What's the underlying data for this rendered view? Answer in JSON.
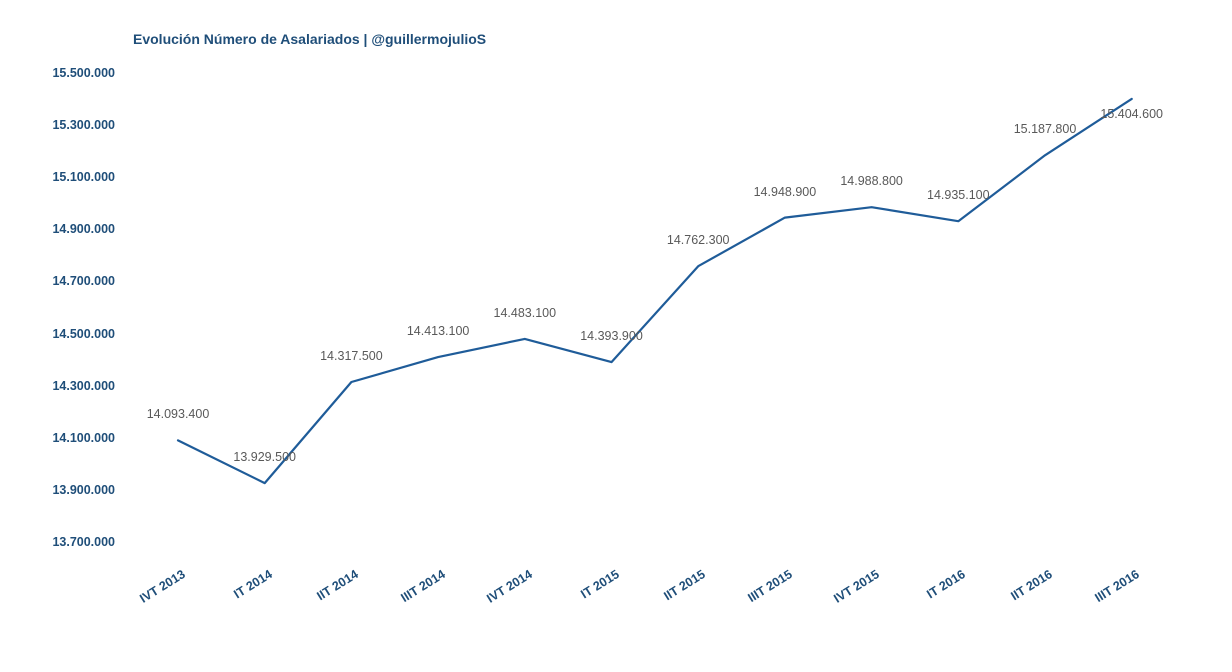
{
  "chart_data": {
    "type": "line",
    "title": "Evolución Número de Asalariados | @guillermojulioS",
    "categories": [
      "IVT 2013",
      "IT 2014",
      "IIT 2014",
      "IIIT 2014",
      "IVT 2014",
      "IT 2015",
      "IIT 2015",
      "IIIT 2015",
      "IVT 2015",
      "IT 2016",
      "IIT 2016",
      "IIIT 2016"
    ],
    "values": [
      14093400,
      13929500,
      14317500,
      14413100,
      14483100,
      14393900,
      14762300,
      14948900,
      14988800,
      14935100,
      15187800,
      15404600
    ],
    "value_labels": [
      "14.093.400",
      "13.929.500",
      "14.317.500",
      "14.413.100",
      "14.483.100",
      "14.393.900",
      "14.762.300",
      "14.948.900",
      "14.988.800",
      "14.935.100",
      "15.187.800",
      "15.404.600"
    ],
    "xlabel": "",
    "ylabel": "",
    "ylim": [
      13700000,
      15500000
    ],
    "y_ticks": [
      {
        "label": "15.500.000",
        "value": 15500000
      },
      {
        "label": "15.300.000",
        "value": 15300000
      },
      {
        "label": "15.100.000",
        "value": 15100000
      },
      {
        "label": "14.900.000",
        "value": 14900000
      },
      {
        "label": "14.700.000",
        "value": 14700000
      },
      {
        "label": "14.500.000",
        "value": 14500000
      },
      {
        "label": "14.300.000",
        "value": 14300000
      },
      {
        "label": "14.100.000",
        "value": 14100000
      },
      {
        "label": "13.900.000",
        "value": 13900000
      },
      {
        "label": "13.700.000",
        "value": 13700000
      }
    ],
    "grid": false,
    "legend": false,
    "line_color": "#1f5c99",
    "text_color": "#1f4e79",
    "data_label_color": "#595959"
  }
}
